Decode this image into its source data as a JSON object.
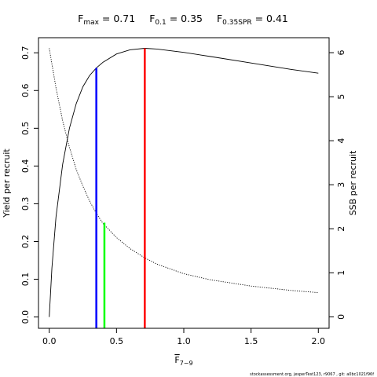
{
  "chart_data": {
    "type": "line",
    "title": {
      "fmax_label": "F",
      "fmax_sub": "max",
      "fmax_value": " = 0.71",
      "f01_label": "F",
      "f01_sub": "0.1",
      "f01_value": " = 0.35",
      "fspr_label": "F",
      "fspr_sub": "0.35SPR",
      "fspr_value": " = 0.41"
    },
    "xlabel": {
      "main": "F",
      "sub": "7−9"
    },
    "ylabel_left": "Yield per recruit",
    "ylabel_right": "SSB per recruit",
    "xlim": [
      -0.08,
      2.08
    ],
    "ylim_left": [
      -0.03,
      0.74
    ],
    "ylim_right": [
      -0.26,
      6.34
    ],
    "x_ticks": [
      {
        "value": 0,
        "label": "0.0"
      },
      {
        "value": 0.5,
        "label": "0.5"
      },
      {
        "value": 1.0,
        "label": "1.0"
      },
      {
        "value": 1.5,
        "label": "1.5"
      },
      {
        "value": 2.0,
        "label": "2.0"
      }
    ],
    "y_ticks_left": [
      {
        "value": 0.0,
        "label": "0.0"
      },
      {
        "value": 0.1,
        "label": "0.1"
      },
      {
        "value": 0.2,
        "label": "0.2"
      },
      {
        "value": 0.3,
        "label": "0.3"
      },
      {
        "value": 0.4,
        "label": "0.4"
      },
      {
        "value": 0.5,
        "label": "0.5"
      },
      {
        "value": 0.6,
        "label": "0.6"
      },
      {
        "value": 0.7,
        "label": "0.7"
      }
    ],
    "y_ticks_right": [
      {
        "value": 0,
        "label": "0"
      },
      {
        "value": 1,
        "label": "1"
      },
      {
        "value": 2,
        "label": "2"
      },
      {
        "value": 3,
        "label": "3"
      },
      {
        "value": 4,
        "label": "4"
      },
      {
        "value": 5,
        "label": "5"
      },
      {
        "value": 6,
        "label": "6"
      }
    ],
    "series": [
      {
        "axis": "left",
        "style": "solid",
        "color": "#000000",
        "x": [
          0,
          0.02,
          0.05,
          0.1,
          0.15,
          0.2,
          0.25,
          0.3,
          0.35,
          0.4,
          0.5,
          0.6,
          0.71,
          0.8,
          1.0,
          1.2,
          1.5,
          1.8,
          2.0
        ],
        "y": [
          0,
          0.13,
          0.265,
          0.405,
          0.5,
          0.565,
          0.61,
          0.64,
          0.66,
          0.675,
          0.697,
          0.708,
          0.712,
          0.71,
          0.701,
          0.69,
          0.673,
          0.656,
          0.646
        ]
      },
      {
        "axis": "right",
        "style": "dotted",
        "color": "#000000",
        "x": [
          0,
          0.05,
          0.1,
          0.15,
          0.2,
          0.25,
          0.3,
          0.35,
          0.4,
          0.5,
          0.6,
          0.71,
          0.8,
          1.0,
          1.2,
          1.5,
          1.8,
          2.0
        ],
        "y": [
          6.1,
          5.2,
          4.45,
          3.85,
          3.35,
          2.97,
          2.63,
          2.35,
          2.12,
          1.8,
          1.55,
          1.34,
          1.2,
          0.98,
          0.84,
          0.7,
          0.6,
          0.55
        ]
      }
    ],
    "reference_lines": [
      {
        "color": "#0000ff",
        "x": 0.35,
        "y_top": 0.66
      },
      {
        "color": "#00ff00",
        "x": 0.41,
        "y_top": 0.25
      },
      {
        "color": "#ff0000",
        "x": 0.71,
        "y_top": 0.712
      }
    ],
    "grid": false,
    "legend": "none"
  },
  "footer": "stockassessment.org, jesperTest123, r9067 , git: a0bc1021f96f"
}
